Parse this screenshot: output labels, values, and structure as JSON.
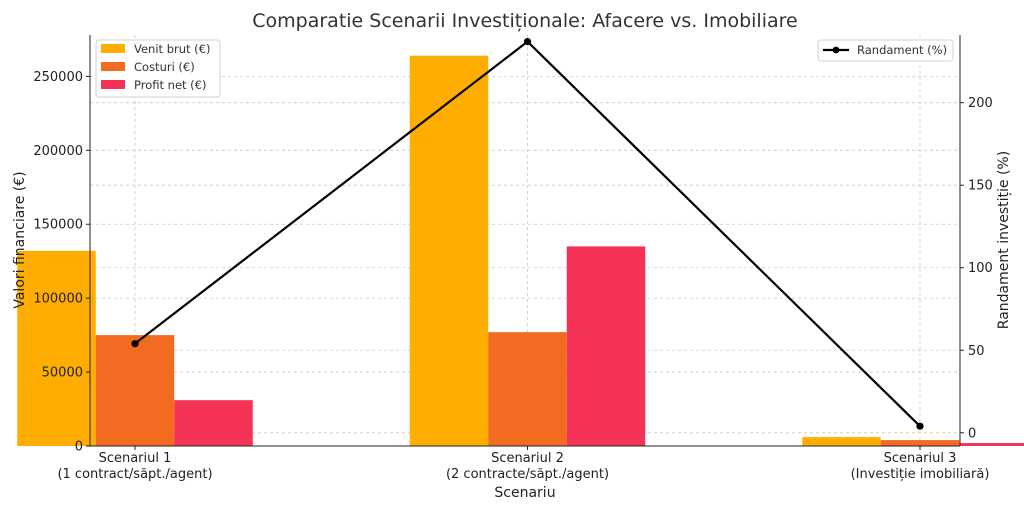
{
  "chart_data": {
    "type": "bar",
    "title": "Comparatie Scenarii Investiționale: Afacere vs. Imobiliare",
    "xlabel": "Scenariu",
    "ylabel": "Valori financiare (€)",
    "y2label": "Randament investiție (%)",
    "categories": [
      [
        "Scenariul 1",
        "(1 contract/săpt./agent)"
      ],
      [
        "Scenariul 2",
        "(2 contracte/săpt./agent)"
      ],
      [
        "Scenariul 3",
        "(Investiție imobiliară)"
      ]
    ],
    "ylim": [
      0,
      278000
    ],
    "y2lim": [
      -8,
      241
    ],
    "yticks": [
      0,
      50000,
      100000,
      150000,
      200000,
      250000
    ],
    "y2ticks": [
      0,
      50,
      100,
      150,
      200
    ],
    "series": [
      {
        "name": "Venit brut (€)",
        "values": [
          132000,
          264000,
          6000
        ],
        "color": "#ffad00"
      },
      {
        "name": "Costuri (€)",
        "values": [
          75000,
          77000,
          4000
        ],
        "color": "#f26b21"
      },
      {
        "name": "Profit net (€)",
        "values": [
          31000,
          135000,
          2000
        ],
        "color": "#f43357"
      }
    ],
    "line_series": {
      "name": "Randament (%)",
      "values": [
        54,
        237,
        4
      ],
      "color": "#000000",
      "axis": "right"
    },
    "grid": true,
    "legend_position": "top-left",
    "line_legend_position": "top-right"
  }
}
